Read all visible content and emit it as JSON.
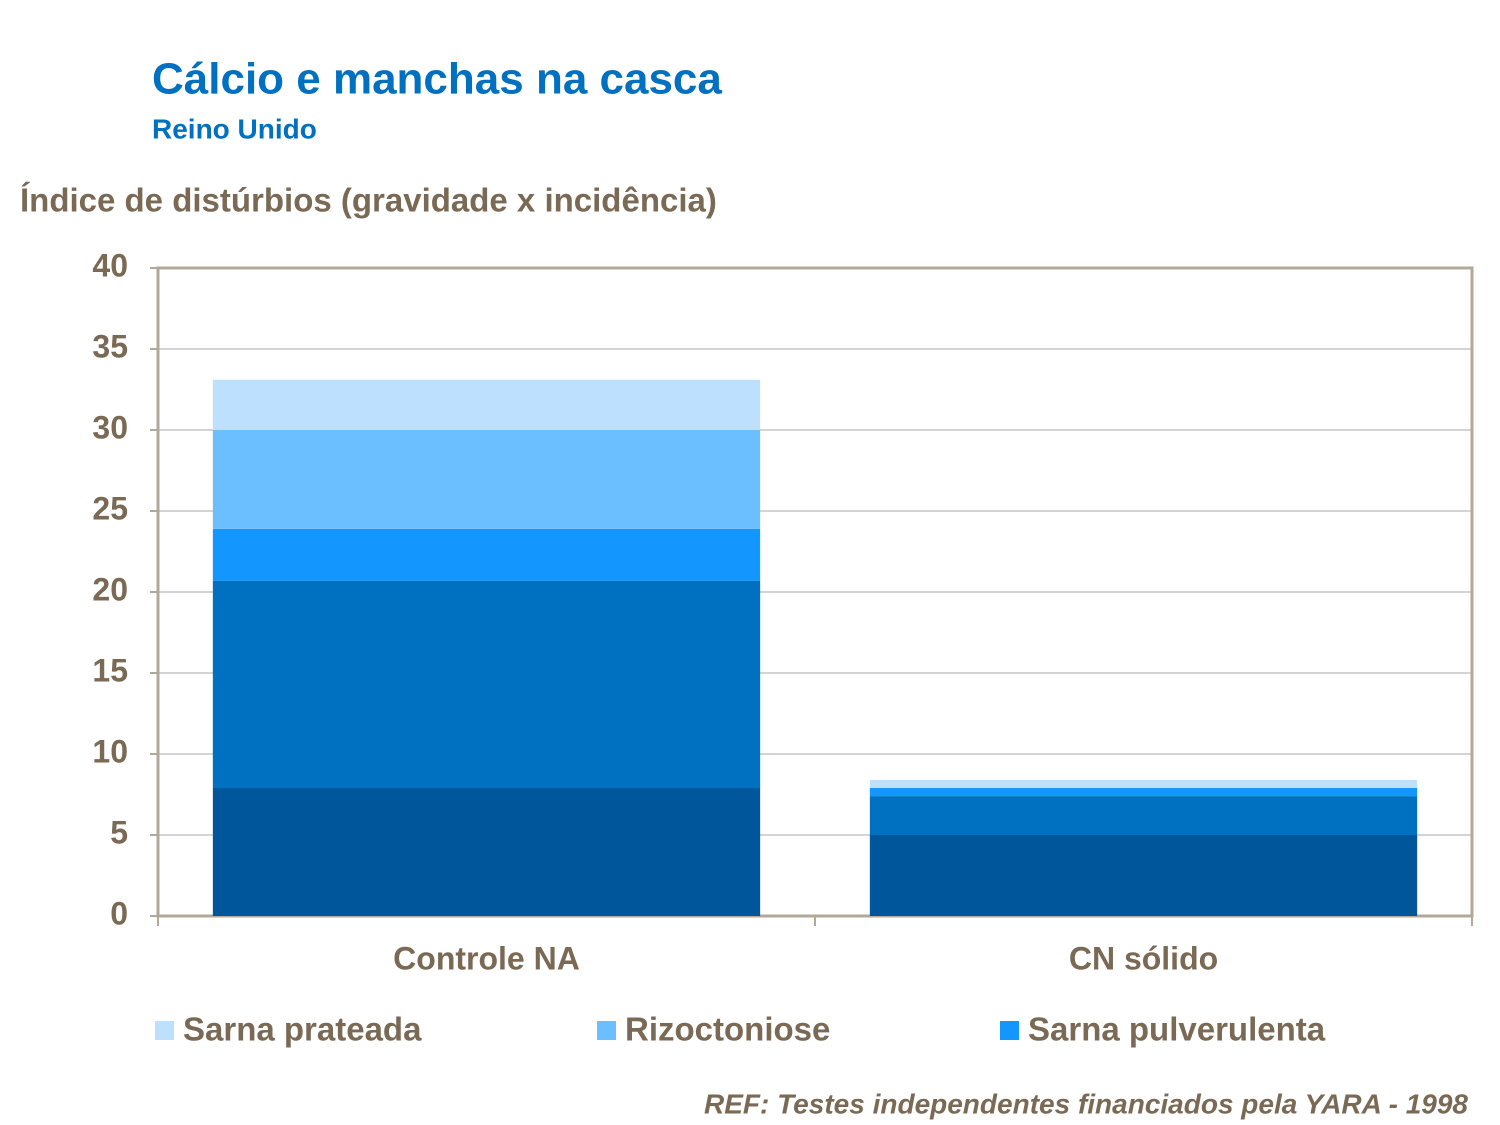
{
  "chart_data": {
    "type": "stacked_bar",
    "title": "Cálcio e manchas na casca",
    "subtitle": "Reino Unido",
    "y_label": "Índice de distúrbios (gravidade x incidência)",
    "categories": [
      "Controle NA",
      "CN sólido"
    ],
    "series": [
      {
        "color": "#00569a",
        "values": [
          7.9,
          5
        ]
      },
      {
        "color": "#0070c0",
        "values": [
          12.8,
          2.4
        ]
      },
      {
        "name": "Sarna pulverulenta",
        "color": "#1496ff",
        "values": [
          3.2,
          0.5
        ]
      },
      {
        "name": "Rizoctoniose",
        "color": "#6bbfff",
        "values": [
          6.1,
          0
        ]
      },
      {
        "name": "Sarna prateada",
        "color": "#bde0ff",
        "values": [
          3.1,
          0.5
        ]
      }
    ],
    "ylim": [
      0,
      40
    ],
    "yticks": [
      0,
      5,
      10,
      15,
      20,
      25,
      30,
      35,
      40
    ],
    "grid": true,
    "legend": "bottom",
    "footnote": "REF: Testes independentes financiados pela YARA - 1998"
  }
}
